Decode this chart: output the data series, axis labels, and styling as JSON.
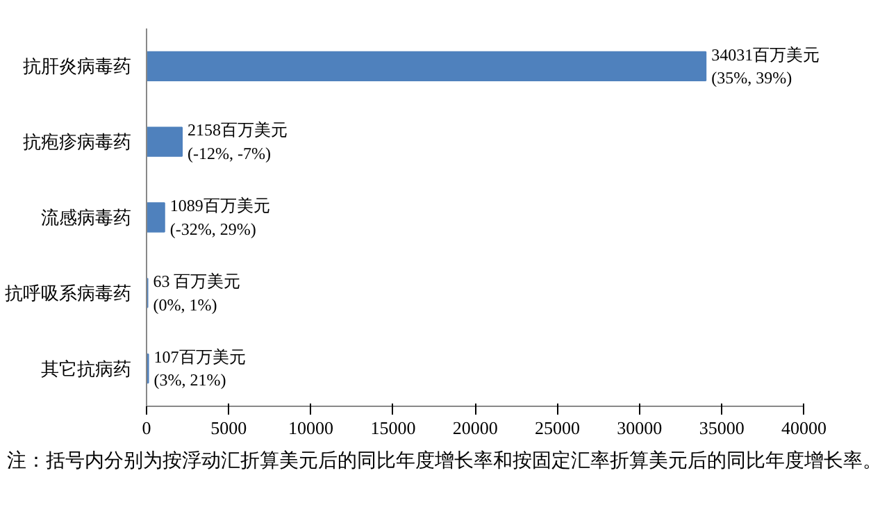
{
  "chart_data": {
    "type": "bar",
    "orientation": "horizontal",
    "categories": [
      "抗肝炎病毒药",
      "抗疱疹病毒药",
      "流感病毒药",
      "抗呼吸系病毒药",
      "其它抗病药"
    ],
    "values": [
      34031,
      2158,
      1089,
      63,
      107
    ],
    "value_labels": [
      "34031百万美元\n(35%, 39%)",
      "2158百万美元\n(-12%, -7%)",
      "1089百万美元\n(-32%, 29%)",
      "63 百万美元\n(0%, 1%)",
      "107百万美元\n(3%, 21%)"
    ],
    "color": "#4f81bd",
    "xlim": [
      0,
      40000
    ],
    "xticks": [
      0,
      5000,
      10000,
      15000,
      20000,
      25000,
      30000,
      35000,
      40000
    ],
    "grid": false,
    "annotations": [
      "注：括号内分别为按浮动汇折算美元后的同比年度增长率和按固定汇率折算美元后的同比年度增长率。"
    ]
  }
}
